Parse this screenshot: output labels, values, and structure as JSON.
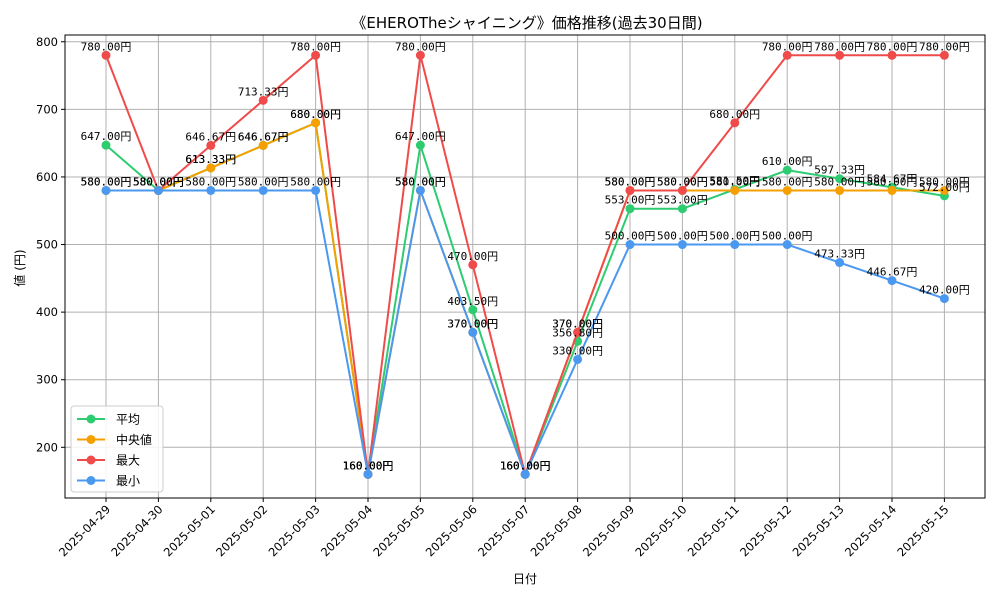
{
  "chart_data": {
    "type": "line",
    "title": "《EHEROTheシャイニング》価格推移(過去30日間)",
    "xlabel": "日付",
    "ylabel": "値 (円)",
    "ylim": [
      125,
      810
    ],
    "yticks": [
      200,
      300,
      400,
      500,
      600,
      700,
      800
    ],
    "grid": true,
    "legend_position": "lower-left",
    "label_suffix": "円",
    "categories": [
      "2025-04-29",
      "2025-04-30",
      "2025-05-01",
      "2025-05-02",
      "2025-05-03",
      "2025-05-04",
      "2025-05-05",
      "2025-05-06",
      "2025-05-07",
      "2025-05-08",
      "2025-05-09",
      "2025-05-10",
      "2025-05-11",
      "2025-05-12",
      "2025-05-13",
      "2025-05-14",
      "2025-05-15"
    ],
    "series": [
      {
        "name": "平均",
        "color": "#2ecc71",
        "values": [
          647.0,
          580.0,
          613.33,
          646.67,
          680.0,
          160.0,
          647.0,
          403.5,
          160.0,
          356.8,
          553.0,
          553.0,
          581.5,
          610.0,
          597.33,
          584.67,
          572.0
        ]
      },
      {
        "name": "中央値",
        "color": "#f5a000",
        "values": [
          580.0,
          580.0,
          613.33,
          646.67,
          680.0,
          160.0,
          580.0,
          370.0,
          160.0,
          370.0,
          580.0,
          580.0,
          580.0,
          580.0,
          580.0,
          580.0,
          580.0
        ]
      },
      {
        "name": "最大",
        "color": "#ef4b4b",
        "values": [
          780.0,
          580.0,
          646.67,
          713.33,
          780.0,
          160.0,
          780.0,
          470.0,
          160.0,
          370.0,
          580.0,
          580.0,
          680.0,
          780.0,
          780.0,
          780.0,
          780.0
        ]
      },
      {
        "name": "最小",
        "color": "#4a98f0",
        "values": [
          580.0,
          580.0,
          580.0,
          580.0,
          580.0,
          160.0,
          580.0,
          370.0,
          160.0,
          330.0,
          500.0,
          500.0,
          500.0,
          500.0,
          473.33,
          446.67,
          420.0
        ]
      }
    ]
  }
}
